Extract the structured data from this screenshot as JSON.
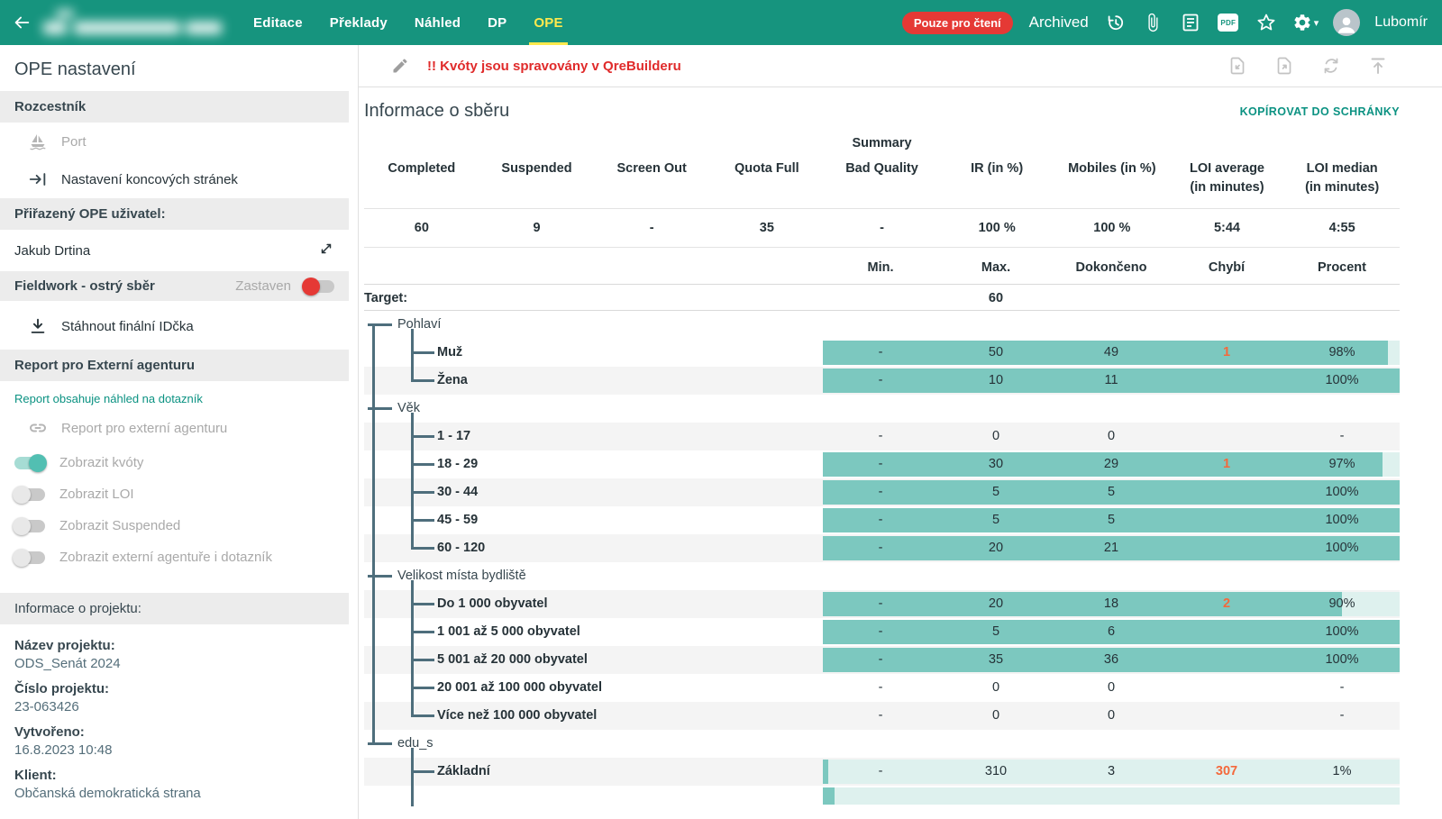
{
  "colors": {
    "topbar": "#16947e",
    "accent_teal": "#0b9282",
    "active_tab_yellow": "#ffe94d",
    "read_only_red": "#e53935",
    "missing_orange": "#f4693c",
    "bar_fill": "#7cc8bf",
    "bar_track": "#def1ee",
    "tree_line": "#4e6e7c",
    "row_alt": "#f4f4f4"
  },
  "topbar": {
    "nav": [
      {
        "label": "Editace",
        "active": false
      },
      {
        "label": "Překlady",
        "active": false
      },
      {
        "label": "Náhled",
        "active": false
      },
      {
        "label": "DP",
        "active": false
      },
      {
        "label": "OPE",
        "active": true
      }
    ],
    "read_only_badge": "Pouze pro čtení",
    "archived_label": "Archived",
    "pdf_icon_label": "PDF",
    "user_name": "Lubomír"
  },
  "sidebar": {
    "title": "OPE nastavení",
    "rozcestnik": {
      "header": "Rozcestník",
      "items": [
        {
          "label": "Port",
          "disabled": true,
          "icon": "sailboat"
        },
        {
          "label": "Nastavení koncových stránek",
          "disabled": false,
          "icon": "keyboard-tab"
        }
      ]
    },
    "assigned_user": {
      "header": "Přiřazený OPE uživatel:",
      "value": "Jakub Drtina"
    },
    "fieldwork": {
      "header": "Fieldwork - ostrý sběr",
      "status": "Zastaven",
      "toggle_on": false,
      "toggle_color": "red"
    },
    "download_ids_label": "Stáhnout finální IDčka",
    "report": {
      "header": "Report pro Externí agenturu",
      "note": "Report obsahuje náhled na dotazník",
      "link_label": "Report pro externí agenturu",
      "toggles": [
        {
          "label": "Zobrazit kvóty",
          "on": true
        },
        {
          "label": "Zobrazit LOI",
          "on": false
        },
        {
          "label": "Zobrazit Suspended",
          "on": false
        },
        {
          "label": "Zobrazit externí agentuře i dotazník",
          "on": false
        }
      ]
    },
    "project_info": {
      "header": "Informace o projektu:",
      "fields": [
        {
          "label": "Název projektu:",
          "value": "ODS_Senát 2024"
        },
        {
          "label": "Číslo projektu:",
          "value": "23-063426"
        },
        {
          "label": "Vytvořeno:",
          "value": "16.8.2023 10:48"
        },
        {
          "label": "Klient:",
          "value": "Občanská demokratická strana"
        }
      ]
    }
  },
  "main": {
    "warning": "!! Kvóty jsou spravovány v QreBuilderu",
    "section_title": "Informace o sběru",
    "copy_link": "KOPÍROVAT DO SCHRÁNKY",
    "summary": {
      "caption": "Summary",
      "columns": [
        "Completed",
        "Suspended",
        "Screen Out",
        "Quota Full",
        "Bad Quality",
        "IR (in %)",
        "Mobiles (in %)",
        "LOI average (in minutes)",
        "LOI median (in minutes)"
      ],
      "values": [
        "60",
        "9",
        "-",
        "35",
        "-",
        "100 %",
        "100 %",
        "5:44",
        "4:55"
      ]
    },
    "quota": {
      "headers": [
        "Min.",
        "Max.",
        "Dokončeno",
        "Chybí",
        "Procent"
      ],
      "target_label": "Target:",
      "target_value": "60",
      "groups": [
        {
          "label": "Pohlaví",
          "items": [
            {
              "label": "Muž",
              "min": "-",
              "max": "50",
              "done": "49",
              "missing": "1",
              "percent": "98%",
              "bar": 98,
              "alt": false
            },
            {
              "label": "Žena",
              "min": "-",
              "max": "10",
              "done": "11",
              "missing": "",
              "percent": "100%",
              "bar": 100,
              "alt": true
            }
          ]
        },
        {
          "label": "Věk",
          "items": [
            {
              "label": "1 - 17",
              "min": "-",
              "max": "0",
              "done": "0",
              "missing": "",
              "percent": "-",
              "bar": null,
              "alt": true
            },
            {
              "label": "18 - 29",
              "min": "-",
              "max": "30",
              "done": "29",
              "missing": "1",
              "percent": "97%",
              "bar": 97,
              "alt": false
            },
            {
              "label": "30 - 44",
              "min": "-",
              "max": "5",
              "done": "5",
              "missing": "",
              "percent": "100%",
              "bar": 100,
              "alt": true
            },
            {
              "label": "45 - 59",
              "min": "-",
              "max": "5",
              "done": "5",
              "missing": "",
              "percent": "100%",
              "bar": 100,
              "alt": false
            },
            {
              "label": "60 - 120",
              "min": "-",
              "max": "20",
              "done": "21",
              "missing": "",
              "percent": "100%",
              "bar": 100,
              "alt": true
            }
          ]
        },
        {
          "label": "Velikost místa bydliště",
          "items": [
            {
              "label": "Do 1 000 obyvatel",
              "min": "-",
              "max": "20",
              "done": "18",
              "missing": "2",
              "percent": "90%",
              "bar": 90,
              "alt": true
            },
            {
              "label": "1 001 až 5 000 obyvatel",
              "min": "-",
              "max": "5",
              "done": "6",
              "missing": "",
              "percent": "100%",
              "bar": 100,
              "alt": false
            },
            {
              "label": "5 001 až 20 000 obyvatel",
              "min": "-",
              "max": "35",
              "done": "36",
              "missing": "",
              "percent": "100%",
              "bar": 100,
              "alt": true
            },
            {
              "label": "20 001 až 100 000 obyvatel",
              "min": "-",
              "max": "0",
              "done": "0",
              "missing": "",
              "percent": "-",
              "bar": null,
              "alt": false
            },
            {
              "label": "Více než 100 000 obyvatel",
              "min": "-",
              "max": "0",
              "done": "0",
              "missing": "",
              "percent": "-",
              "bar": null,
              "alt": true
            }
          ]
        },
        {
          "label": "edu_s",
          "clipped": true,
          "items": [
            {
              "label": "Základní",
              "min": "-",
              "max": "310",
              "done": "3",
              "missing": "307",
              "percent": "1%",
              "bar": 1,
              "alt": true
            }
          ]
        }
      ]
    }
  }
}
